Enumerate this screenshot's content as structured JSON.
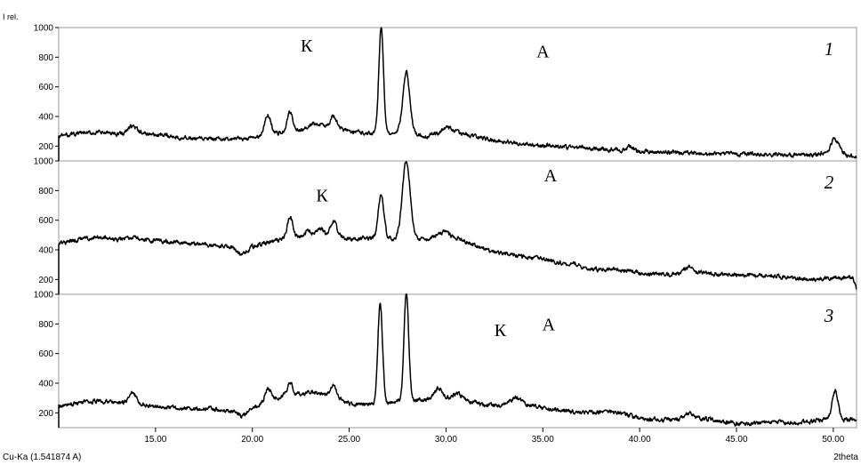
{
  "chart_data": {
    "type": "line",
    "ylabel": "I rel.",
    "xlabel": "2theta",
    "radiation": "Cu-Ka (1.541874 A)",
    "xlim": [
      10.0,
      51.2
    ],
    "x_ticks": [
      15.0,
      20.0,
      25.0,
      30.0,
      35.0,
      40.0,
      45.0,
      50.0
    ],
    "x_tick_labels": [
      "15.00",
      "20.00",
      "25.00",
      "30.00",
      "35.00",
      "40.00",
      "45.00",
      "50.00"
    ],
    "y_ticks": [
      200,
      400,
      600,
      800,
      1000
    ],
    "y_tick_labels": [
      "200",
      "400",
      "600",
      "800",
      "1000"
    ],
    "grid": false,
    "panels": [
      {
        "number": "1",
        "ylim": [
          100,
          1000
        ],
        "annotations": [
          {
            "text": "К",
            "x": 22.8,
            "y": 880
          },
          {
            "text": "А",
            "x": 35.0,
            "y": 840
          }
        ],
        "baseline": [
          [
            10.0,
            260
          ],
          [
            10.1,
            270
          ],
          [
            11.0,
            285
          ],
          [
            12.0,
            290
          ],
          [
            13.0,
            285
          ],
          [
            14.0,
            295
          ],
          [
            15.0,
            275
          ],
          [
            16.0,
            265
          ],
          [
            17.0,
            250
          ],
          [
            18.0,
            245
          ],
          [
            19.0,
            245
          ],
          [
            20.0,
            255
          ],
          [
            21.0,
            280
          ],
          [
            22.0,
            300
          ],
          [
            23.0,
            320
          ],
          [
            24.0,
            330
          ],
          [
            25.0,
            300
          ],
          [
            26.0,
            290
          ],
          [
            28.5,
            280
          ],
          [
            29.0,
            265
          ],
          [
            30.0,
            300
          ],
          [
            31.0,
            280
          ],
          [
            32.0,
            250
          ],
          [
            33.0,
            230
          ],
          [
            34.0,
            215
          ],
          [
            35.0,
            205
          ],
          [
            36.0,
            195
          ],
          [
            37.0,
            190
          ],
          [
            38.0,
            180
          ],
          [
            39.0,
            175
          ],
          [
            40.0,
            165
          ],
          [
            41.0,
            160
          ],
          [
            42.0,
            155
          ],
          [
            43.0,
            150
          ],
          [
            44.0,
            150
          ],
          [
            45.0,
            148
          ],
          [
            46.0,
            145
          ],
          [
            47.0,
            145
          ],
          [
            48.0,
            140
          ],
          [
            49.0,
            140
          ],
          [
            50.0,
            170
          ],
          [
            50.5,
            150
          ],
          [
            51.2,
            125
          ]
        ],
        "peaks": [
          [
            13.8,
            335,
            0.18
          ],
          [
            20.8,
            410,
            0.16
          ],
          [
            21.95,
            430,
            0.14
          ],
          [
            23.1,
            355,
            0.14
          ],
          [
            23.6,
            355,
            0.14
          ],
          [
            24.2,
            405,
            0.15
          ],
          [
            26.65,
            1000,
            0.12
          ],
          [
            27.95,
            700,
            0.18
          ],
          [
            30.1,
            330,
            0.25
          ],
          [
            39.5,
            195,
            0.15
          ],
          [
            50.1,
            250,
            0.18
          ]
        ]
      },
      {
        "number": "2",
        "ylim": [
          100,
          1000
        ],
        "annotations": [
          {
            "text": "К",
            "x": 23.6,
            "y": 770
          },
          {
            "text": "А",
            "x": 35.4,
            "y": 905
          }
        ],
        "baseline": [
          [
            10.0,
            440
          ],
          [
            11.0,
            470
          ],
          [
            12.0,
            490
          ],
          [
            13.0,
            470
          ],
          [
            14.0,
            470
          ],
          [
            15.0,
            460
          ],
          [
            16.0,
            450
          ],
          [
            17.0,
            440
          ],
          [
            18.0,
            430
          ],
          [
            19.0,
            420
          ],
          [
            19.4,
            360
          ],
          [
            20.0,
            420
          ],
          [
            21.0,
            460
          ],
          [
            22.0,
            480
          ],
          [
            23.0,
            500
          ],
          [
            24.0,
            510
          ],
          [
            25.0,
            470
          ],
          [
            26.0,
            480
          ],
          [
            29.0,
            470
          ],
          [
            30.0,
            500
          ],
          [
            31.0,
            460
          ],
          [
            32.0,
            400
          ],
          [
            33.0,
            370
          ],
          [
            34.0,
            355
          ],
          [
            35.0,
            340
          ],
          [
            36.0,
            310
          ],
          [
            37.0,
            280
          ],
          [
            38.0,
            265
          ],
          [
            39.0,
            265
          ],
          [
            40.0,
            245
          ],
          [
            41.0,
            235
          ],
          [
            42.0,
            240
          ],
          [
            43.0,
            250
          ],
          [
            44.0,
            235
          ],
          [
            45.0,
            230
          ],
          [
            46.0,
            225
          ],
          [
            47.0,
            225
          ],
          [
            48.0,
            205
          ],
          [
            49.0,
            200
          ],
          [
            50.0,
            210
          ],
          [
            51.0,
            215
          ],
          [
            51.2,
            130
          ]
        ],
        "peaks": [
          [
            13.8,
            485,
            0.2
          ],
          [
            21.95,
            620,
            0.14
          ],
          [
            22.9,
            535,
            0.14
          ],
          [
            23.5,
            545,
            0.14
          ],
          [
            24.2,
            590,
            0.15
          ],
          [
            26.65,
            780,
            0.14
          ],
          [
            27.95,
            1000,
            0.2
          ],
          [
            29.9,
            520,
            0.3
          ],
          [
            36.6,
            315,
            0.2
          ],
          [
            42.5,
            280,
            0.2
          ]
        ]
      },
      {
        "number": "3",
        "ylim": [
          100,
          1000
        ],
        "annotations": [
          {
            "text": "К",
            "x": 32.8,
            "y": 760
          },
          {
            "text": "А",
            "x": 35.3,
            "y": 800
          }
        ],
        "baseline": [
          [
            10.0,
            250
          ],
          [
            11.0,
            265
          ],
          [
            12.0,
            280
          ],
          [
            13.0,
            270
          ],
          [
            14.0,
            265
          ],
          [
            15.0,
            240
          ],
          [
            16.0,
            235
          ],
          [
            17.0,
            230
          ],
          [
            18.0,
            225
          ],
          [
            19.0,
            215
          ],
          [
            19.4,
            175
          ],
          [
            20.0,
            230
          ],
          [
            21.0,
            300
          ],
          [
            22.0,
            320
          ],
          [
            23.0,
            330
          ],
          [
            24.0,
            320
          ],
          [
            25.0,
            260
          ],
          [
            26.0,
            255
          ],
          [
            29.0,
            290
          ],
          [
            30.0,
            300
          ],
          [
            31.0,
            290
          ],
          [
            32.0,
            250
          ],
          [
            33.0,
            250
          ],
          [
            34.0,
            260
          ],
          [
            35.0,
            235
          ],
          [
            36.0,
            215
          ],
          [
            37.0,
            200
          ],
          [
            38.0,
            205
          ],
          [
            39.0,
            200
          ],
          [
            40.0,
            165
          ],
          [
            41.0,
            150
          ],
          [
            42.0,
            160
          ],
          [
            43.0,
            165
          ],
          [
            44.0,
            150
          ],
          [
            45.0,
            125
          ],
          [
            46.0,
            130
          ],
          [
            47.0,
            140
          ],
          [
            48.0,
            135
          ],
          [
            49.0,
            145
          ],
          [
            50.0,
            160
          ],
          [
            51.0,
            150
          ],
          [
            51.2,
            140
          ]
        ],
        "peaks": [
          [
            13.8,
            335,
            0.18
          ],
          [
            20.8,
            360,
            0.15
          ],
          [
            21.95,
            400,
            0.14
          ],
          [
            23.1,
            345,
            0.14
          ],
          [
            24.2,
            385,
            0.15
          ],
          [
            26.6,
            940,
            0.12
          ],
          [
            27.95,
            1000,
            0.12
          ],
          [
            29.6,
            370,
            0.2
          ],
          [
            30.6,
            330,
            0.2
          ],
          [
            33.6,
            305,
            0.25
          ],
          [
            42.5,
            200,
            0.2
          ],
          [
            50.1,
            345,
            0.15
          ]
        ]
      }
    ]
  }
}
